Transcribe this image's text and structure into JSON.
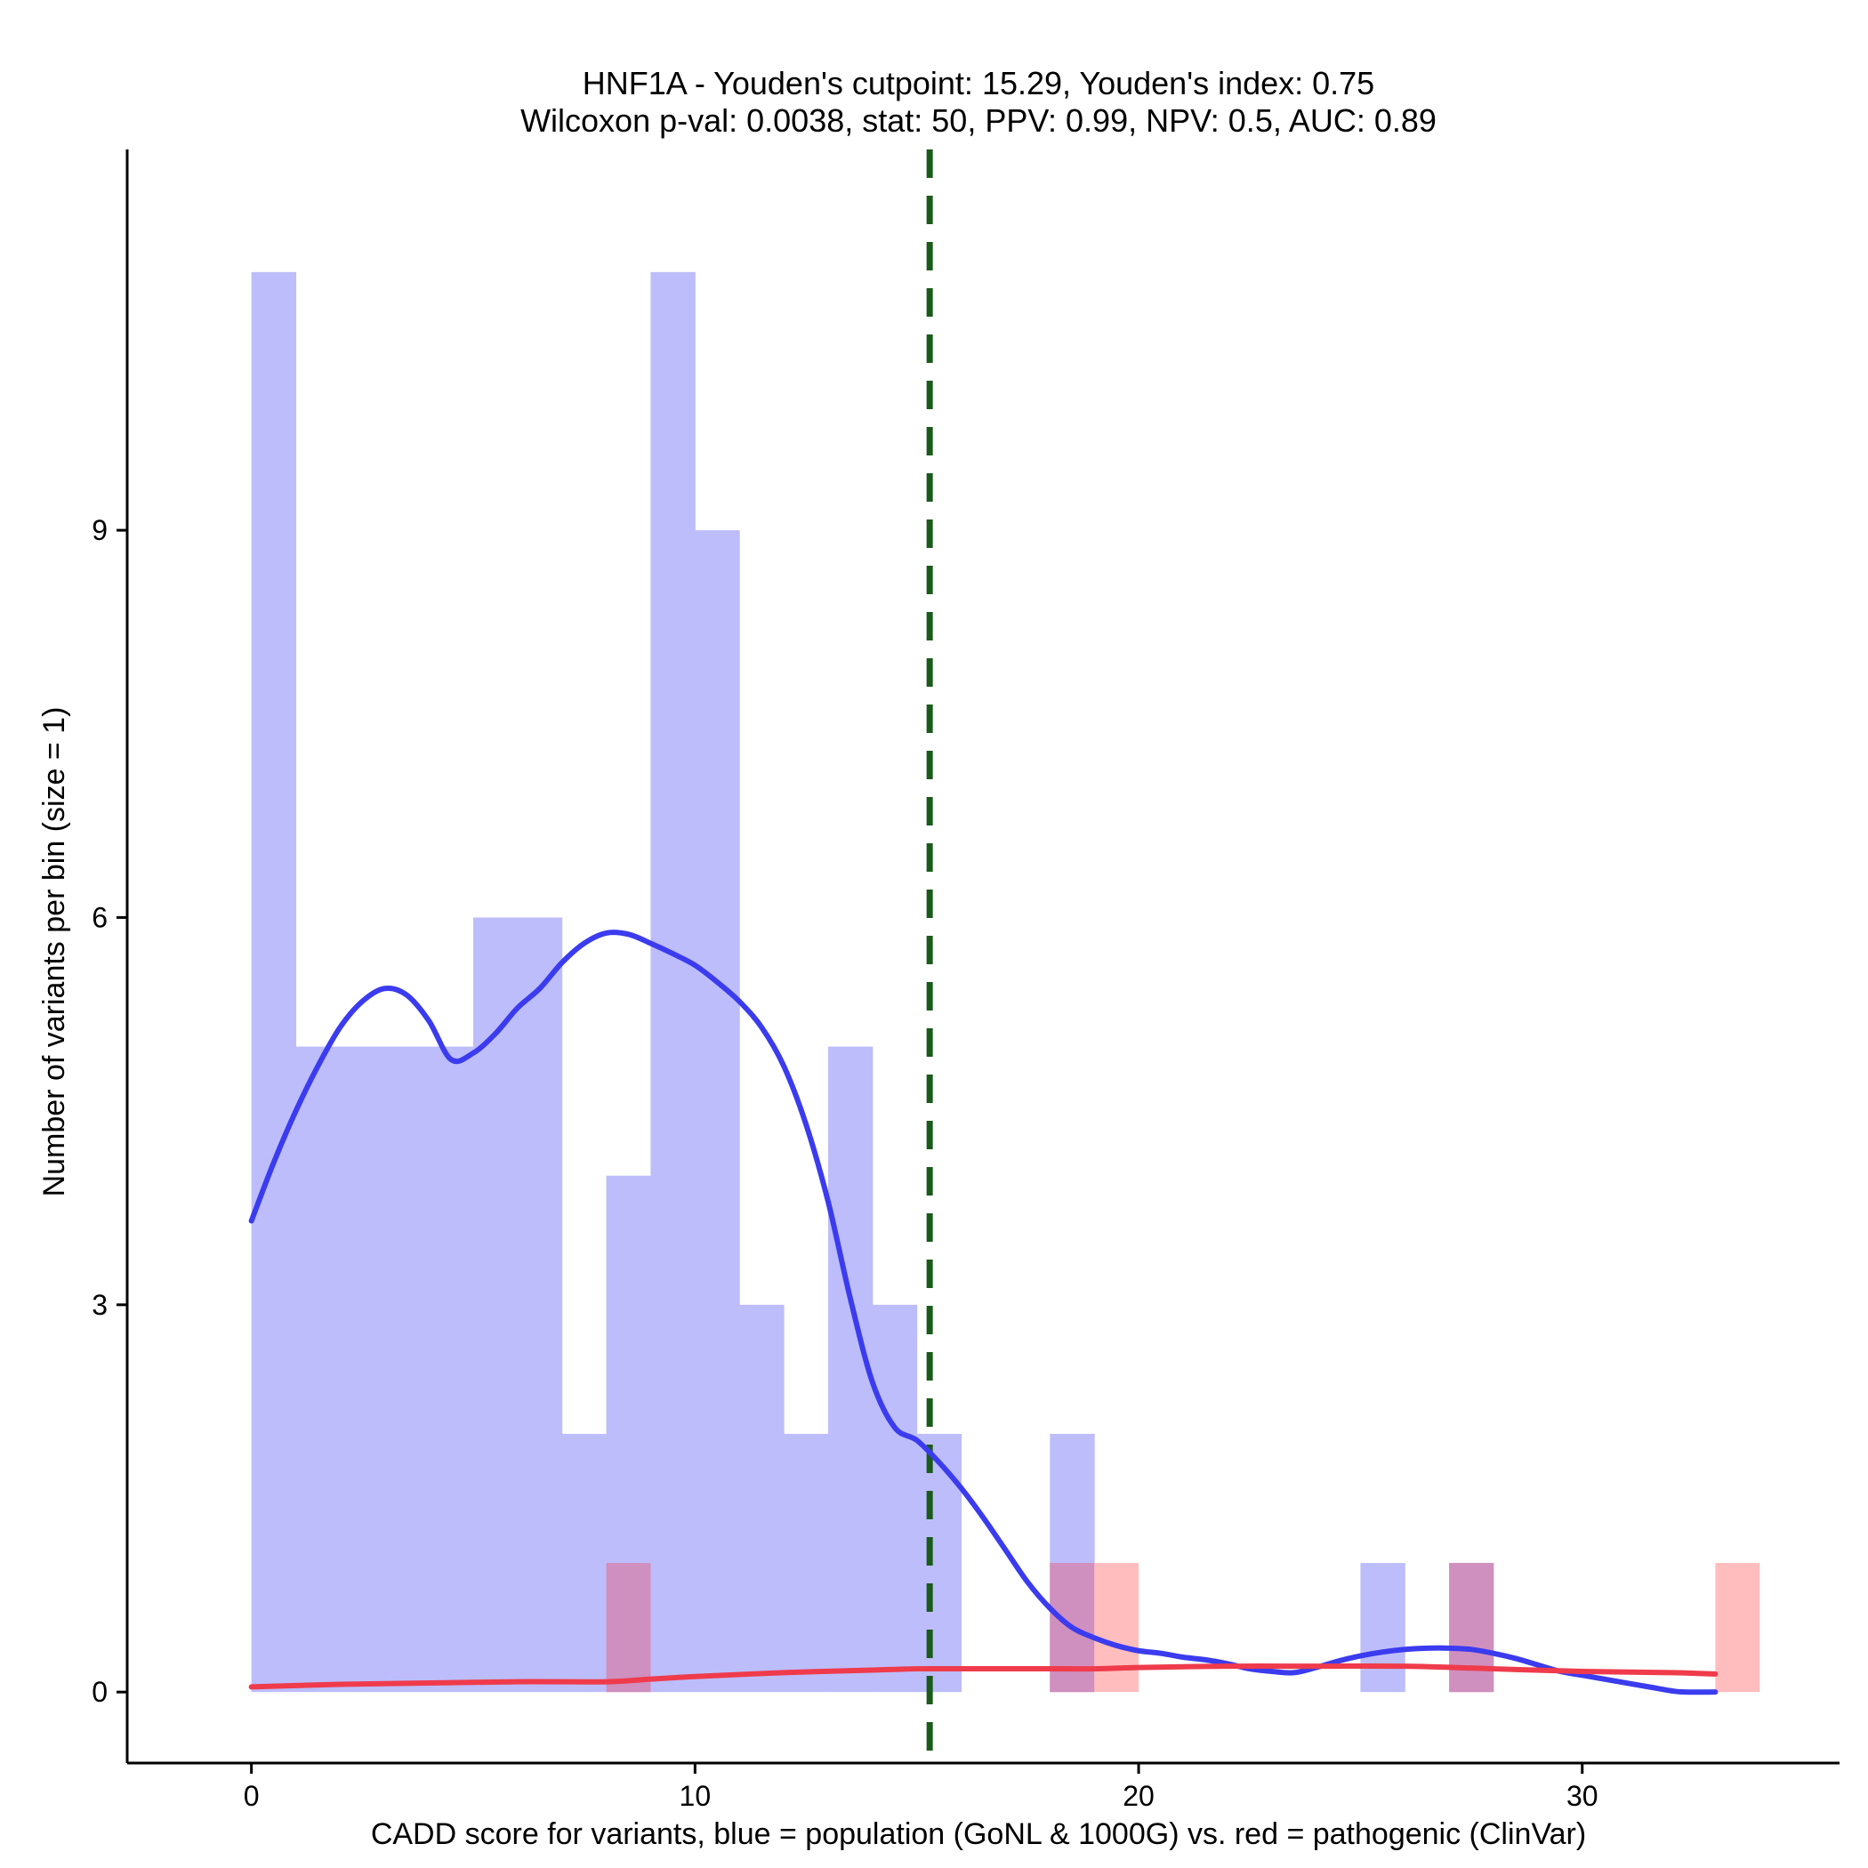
{
  "chart_data": {
    "type": "bar",
    "title": "HNF1A - Youden's cutpoint: 15.29, Youden's index: 0.75",
    "subtitle": "Wilcoxon p-val: 0.0038, stat: 50, PPV: 0.99, NPV: 0.5, AUC: 0.89",
    "xlabel": "CADD score for variants, blue = population (GoNL & 1000G) vs. red = pathogenic (ClinVar)",
    "ylabel": "Number of variants per bin (size = 1)",
    "xlim": [
      -2.8,
      35.8
    ],
    "ylim": [
      -0.55,
      11.95
    ],
    "x_ticks": [
      0,
      10,
      20,
      30
    ],
    "y_ticks": [
      0,
      3,
      6,
      9
    ],
    "grid": false,
    "bin_width": 1,
    "cutpoint": 15.29,
    "series": [
      {
        "name": "population (GoNL & 1000G)",
        "color": "#bdbdfb",
        "bins": [
          {
            "x0": 0,
            "count": 11
          },
          {
            "x0": 1,
            "count": 5
          },
          {
            "x0": 2,
            "count": 5
          },
          {
            "x0": 3,
            "count": 5
          },
          {
            "x0": 4,
            "count": 5
          },
          {
            "x0": 5,
            "count": 6
          },
          {
            "x0": 6,
            "count": 6
          },
          {
            "x0": 7,
            "count": 2
          },
          {
            "x0": 8,
            "count": 4
          },
          {
            "x0": 9,
            "count": 11
          },
          {
            "x0": 10,
            "count": 9
          },
          {
            "x0": 11,
            "count": 3
          },
          {
            "x0": 12,
            "count": 2
          },
          {
            "x0": 13,
            "count": 5
          },
          {
            "x0": 14,
            "count": 3
          },
          {
            "x0": 15,
            "count": 2
          },
          {
            "x0": 18,
            "count": 2
          },
          {
            "x0": 25,
            "count": 1
          },
          {
            "x0": 27,
            "count": 1
          }
        ]
      },
      {
        "name": "pathogenic (ClinVar)",
        "color": "#ffbdbd",
        "bins": [
          {
            "x0": 8,
            "count": 1
          },
          {
            "x0": 18,
            "count": 1
          },
          {
            "x0": 19,
            "count": 1
          },
          {
            "x0": 27,
            "count": 1
          },
          {
            "x0": 33,
            "count": 1
          }
        ]
      }
    ],
    "overlap_color": "#cf8fbf",
    "density_curves": [
      {
        "name": "population density",
        "color": "#3b3bef",
        "x": [
          0,
          0.5,
          1,
          1.5,
          2,
          2.5,
          3,
          3.5,
          4,
          4.5,
          5,
          5.5,
          6,
          6.5,
          7,
          7.5,
          8,
          8.5,
          9,
          9.5,
          10,
          10.5,
          11,
          11.5,
          12,
          12.5,
          13,
          13.5,
          14,
          14.5,
          15,
          15.5,
          16,
          16.5,
          17,
          17.5,
          18,
          18.5,
          19,
          19.5,
          20,
          20.5,
          21,
          21.5,
          22,
          22.5,
          23,
          23.5,
          24,
          24.5,
          25,
          25.5,
          26,
          26.5,
          27,
          27.5,
          28,
          28.5,
          29,
          29.5,
          30,
          30.5,
          31,
          31.5,
          32,
          32.3,
          33
        ],
        "y": [
          3.65,
          4.1,
          4.5,
          4.85,
          5.15,
          5.35,
          5.45,
          5.4,
          5.2,
          4.9,
          4.95,
          5.1,
          5.3,
          5.45,
          5.65,
          5.8,
          5.88,
          5.87,
          5.8,
          5.72,
          5.63,
          5.5,
          5.35,
          5.15,
          4.85,
          4.4,
          3.8,
          3.05,
          2.4,
          2.05,
          1.95,
          1.78,
          1.58,
          1.35,
          1.1,
          0.85,
          0.65,
          0.5,
          0.42,
          0.36,
          0.32,
          0.3,
          0.27,
          0.25,
          0.22,
          0.18,
          0.16,
          0.15,
          0.19,
          0.24,
          0.28,
          0.31,
          0.33,
          0.34,
          0.34,
          0.33,
          0.3,
          0.26,
          0.21,
          0.16,
          0.13,
          0.1,
          0.07,
          0.04,
          0.01,
          0.0,
          0.0
        ]
      },
      {
        "name": "pathogenic density",
        "color": "#ef3b4b",
        "x": [
          0,
          2,
          4,
          6,
          8,
          9,
          10,
          12,
          14,
          15,
          16,
          18,
          19,
          20,
          22,
          24,
          26,
          28,
          30,
          32,
          33
        ],
        "y": [
          0.04,
          0.06,
          0.07,
          0.08,
          0.08,
          0.1,
          0.12,
          0.15,
          0.17,
          0.18,
          0.18,
          0.18,
          0.18,
          0.19,
          0.2,
          0.2,
          0.2,
          0.18,
          0.16,
          0.15,
          0.14
        ]
      }
    ]
  }
}
